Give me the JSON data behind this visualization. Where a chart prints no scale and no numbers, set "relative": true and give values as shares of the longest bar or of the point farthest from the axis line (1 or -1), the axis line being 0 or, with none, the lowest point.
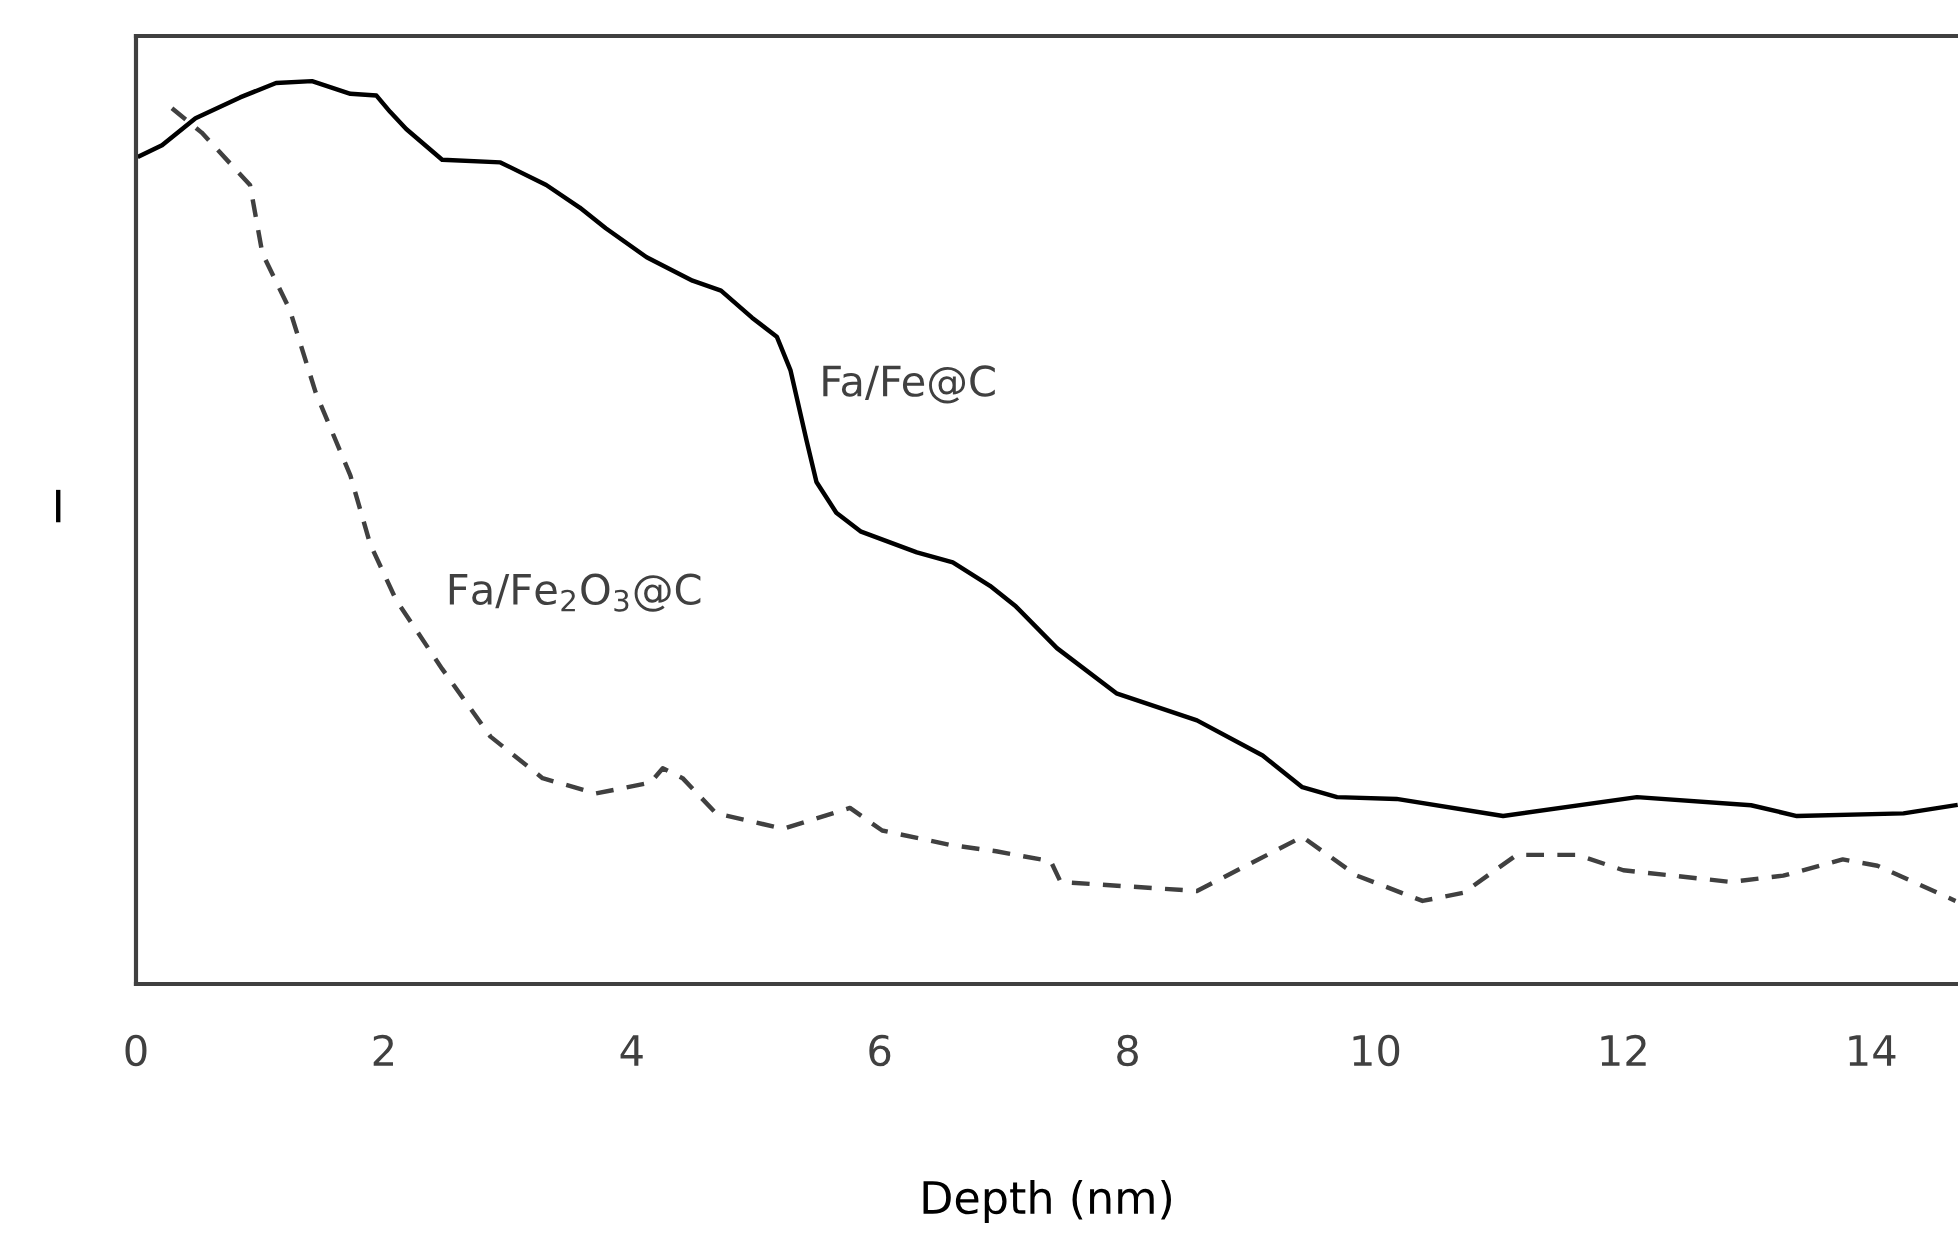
{
  "chart_data": {
    "type": "line",
    "relative": true,
    "xlabel": "Depth (nm)",
    "ylabel": "I",
    "xlim": [
      0,
      14.7
    ],
    "xticks": [
      0,
      2,
      4,
      6,
      8,
      10,
      12,
      14
    ],
    "grid": false,
    "legend": false,
    "marker": "none",
    "series": [
      {
        "name": "Fa/Fe@C",
        "color": "#000000",
        "line_style": "solid",
        "x": [
          0.03,
          0.21,
          0.48,
          0.84,
          1.13,
          1.42,
          1.73,
          1.94,
          2.05,
          2.18,
          2.47,
          2.94,
          3.31,
          3.58,
          3.79,
          4.12,
          4.49,
          4.72,
          4.97,
          5.17,
          5.28,
          5.41,
          5.49,
          5.65,
          5.85,
          6.3,
          6.59,
          6.89,
          7.1,
          7.43,
          7.91,
          8.56,
          9.09,
          9.41,
          9.69,
          10.17,
          11.03,
          12.11,
          13.03,
          13.4,
          14.26,
          14.68
        ],
        "values": [
          0.917,
          0.929,
          0.959,
          0.982,
          0.998,
          1.0,
          0.986,
          0.984,
          0.966,
          0.947,
          0.913,
          0.91,
          0.885,
          0.86,
          0.837,
          0.805,
          0.779,
          0.768,
          0.738,
          0.717,
          0.68,
          0.602,
          0.556,
          0.522,
          0.501,
          0.478,
          0.467,
          0.441,
          0.418,
          0.372,
          0.322,
          0.292,
          0.253,
          0.218,
          0.207,
          0.205,
          0.186,
          0.207,
          0.198,
          0.186,
          0.189,
          0.198
        ]
      },
      {
        "name": "Fa/Fe$_{2}$O$_{3}$@C",
        "color": "#404040",
        "line_style": "dashed",
        "x": [
          0.29,
          0.53,
          0.92,
          1.02,
          1.24,
          1.45,
          1.73,
          1.89,
          2.1,
          2.47,
          2.86,
          3.28,
          3.71,
          4.15,
          4.25,
          4.41,
          4.68,
          5.22,
          5.76,
          6.02,
          6.57,
          6.94,
          7.38,
          7.46,
          8.56,
          9.41,
          9.85,
          10.38,
          10.71,
          11.14,
          11.63,
          12.0,
          12.87,
          13.29,
          13.77,
          14.05,
          14.68
        ],
        "values": [
          0.97,
          0.943,
          0.885,
          0.809,
          0.747,
          0.655,
          0.563,
          0.487,
          0.425,
          0.349,
          0.274,
          0.228,
          0.211,
          0.223,
          0.239,
          0.228,
          0.189,
          0.172,
          0.195,
          0.17,
          0.154,
          0.147,
          0.136,
          0.113,
          0.103,
          0.163,
          0.12,
          0.092,
          0.101,
          0.143,
          0.143,
          0.126,
          0.113,
          0.12,
          0.138,
          0.131,
          0.092
        ]
      }
    ]
  }
}
